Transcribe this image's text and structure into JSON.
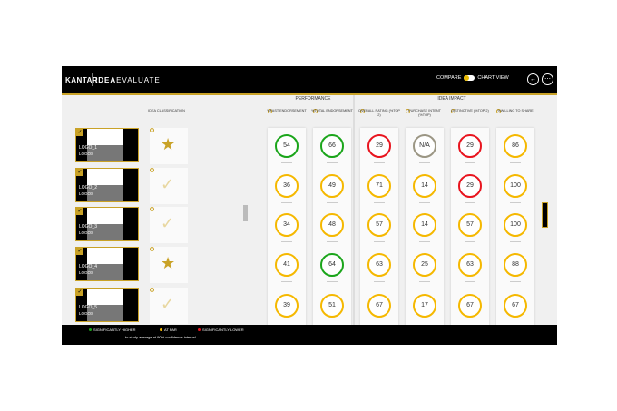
{
  "header": {
    "brand": "KANTAR",
    "product_bold": "IDEA",
    "product_rest": "EVALUATE",
    "compare_label": "COMPARE",
    "chart_view_label": "CHART VIEW",
    "back_icon": "arrow-left-icon",
    "more_icon": "more-icon"
  },
  "sections": {
    "performance": "PERFORMANCE",
    "impact": "IDEA IMPACT"
  },
  "classification_header": "IDEA CLASSIFICATION",
  "colors": {
    "green": "#1aa51a",
    "amber": "#f5b800",
    "red": "#e8141e",
    "gray": "#9b9684",
    "gold": "#c9a227"
  },
  "columns": [
    {
      "label": "%FAST ENDORSEMENT",
      "values": [
        "54",
        "36",
        "34",
        "41",
        "39"
      ],
      "status": [
        "green",
        "amber",
        "amber",
        "amber",
        "amber"
      ]
    },
    {
      "label": "%TOTAL ENDORSEMENT",
      "values": [
        "66",
        "49",
        "48",
        "64",
        "51"
      ],
      "status": [
        "green",
        "amber",
        "amber",
        "green",
        "amber"
      ]
    },
    {
      "label": "OVERALL RATING (%TOP 2)",
      "values": [
        "29",
        "71",
        "57",
        "63",
        "67"
      ],
      "status": [
        "red",
        "amber",
        "amber",
        "amber",
        "amber"
      ]
    },
    {
      "label": "PURCHASE INTENT (%TOP)",
      "values": [
        "N/A",
        "14",
        "14",
        "25",
        "17"
      ],
      "status": [
        "gray",
        "amber",
        "amber",
        "amber",
        "amber"
      ]
    },
    {
      "label": "DISTINCTIVE (%TOP 2)",
      "values": [
        "29",
        "29",
        "57",
        "63",
        "67"
      ],
      "status": [
        "red",
        "red",
        "amber",
        "amber",
        "amber"
      ]
    },
    {
      "label": "%WILLING TO SHARE",
      "values": [
        "86",
        "100",
        "100",
        "88",
        "67"
      ],
      "status": [
        "amber",
        "amber",
        "amber",
        "amber",
        "amber"
      ]
    }
  ],
  "ideas": [
    {
      "name": "LOGO_1",
      "sub": "LOGOS",
      "classification": "star"
    },
    {
      "name": "LOGO_2",
      "sub": "LOGOS",
      "classification": "check"
    },
    {
      "name": "LOGO_3",
      "sub": "LOGOS",
      "classification": "check"
    },
    {
      "name": "LOGO_4",
      "sub": "LOGOS",
      "classification": "star"
    },
    {
      "name": "LOGO_5",
      "sub": "LOGOS",
      "classification": "check"
    }
  ],
  "footer": {
    "higher": "SIGNIFICANTLY HIGHER",
    "par": "AT PAR",
    "lower": "SIGNIFICANTLY LOWER",
    "note": "to study average at 90% confidence interval"
  }
}
